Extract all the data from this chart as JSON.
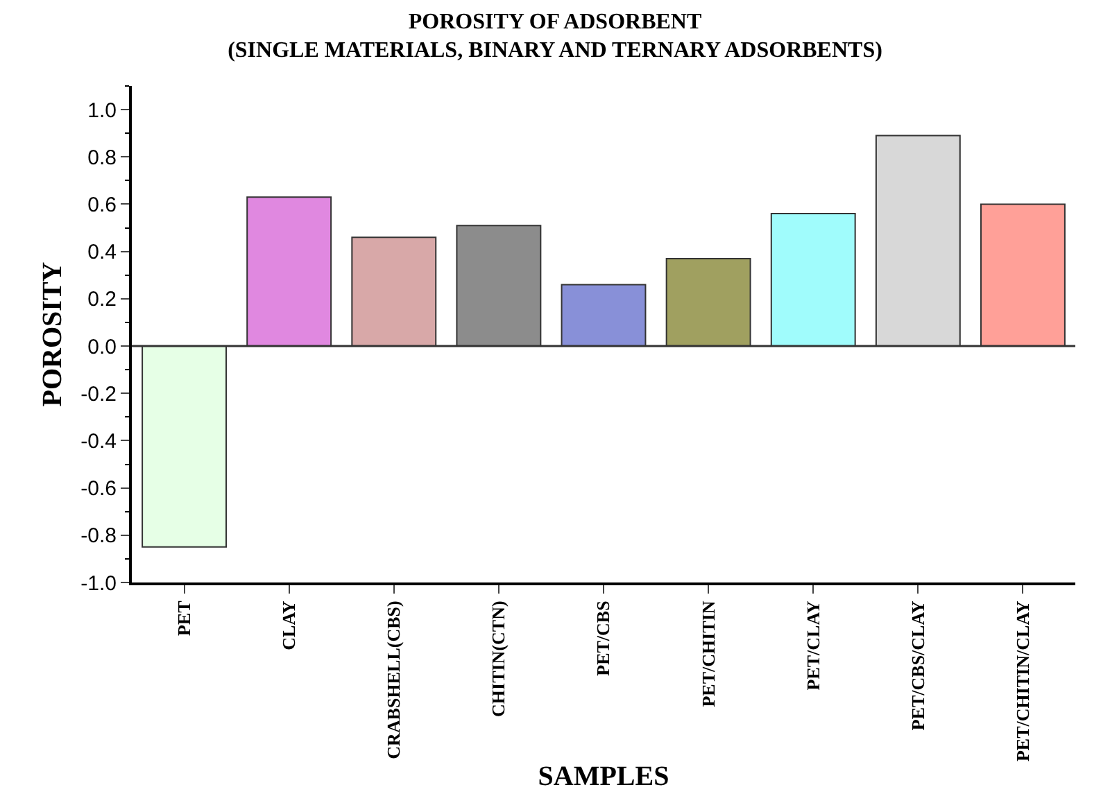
{
  "chart_data": {
    "type": "bar",
    "title": "POROSITY OF ADSORBENT\n(SINGLE MATERIALS, BINARY AND TERNARY ADSORBENTS)",
    "xlabel": "SAMPLES",
    "ylabel": "POROSITY",
    "categories": [
      "PET",
      "CLAY",
      "CRABSHELL(CBS)",
      "CHITIN(CTN)",
      "PET/CBS",
      "PET/CHITIN",
      "PET/CLAY",
      "PET/CBS/CLAY",
      "PET/CHITIN/CLAY"
    ],
    "values": [
      -0.85,
      0.63,
      0.46,
      0.51,
      0.26,
      0.37,
      0.56,
      0.89,
      0.6
    ],
    "colors": [
      "#e6ffe6",
      "#e088e0",
      "#d8a8a8",
      "#8c8c8c",
      "#8890d8",
      "#a0a060",
      "#a0fcfc",
      "#d8d8d8",
      "#ffa098"
    ],
    "ylim": [
      -1.0,
      1.1
    ],
    "yticks": [
      {
        "value": -1.0,
        "label": "-1.0"
      },
      {
        "value": -0.8,
        "label": "-0.8"
      },
      {
        "value": -0.6,
        "label": "-0.6"
      },
      {
        "value": -0.4,
        "label": "-0.4"
      },
      {
        "value": -0.2,
        "label": "-0.2"
      },
      {
        "value": 0.0,
        "label": "0.0"
      },
      {
        "value": 0.2,
        "label": "0.2"
      },
      {
        "value": 0.4,
        "label": "0.4"
      },
      {
        "value": 0.6,
        "label": "0.6"
      },
      {
        "value": 0.8,
        "label": "0.8"
      },
      {
        "value": 1.0,
        "label": "1.0"
      }
    ],
    "ref_lines": [
      {
        "axis": "y",
        "value": 0.0,
        "color": "#333333"
      }
    ]
  }
}
